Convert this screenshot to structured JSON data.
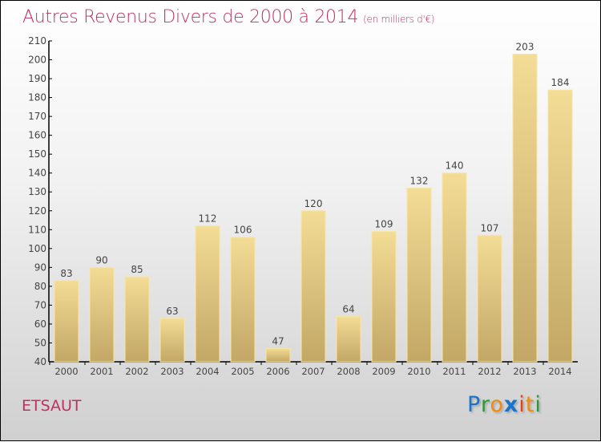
{
  "title": "Autres Revenus Divers de 2000 à 2014",
  "subtitle": "(en milliers d'€)",
  "place": "ETSAUT",
  "logo_text": "Proxiti",
  "colors": {
    "title": "#c0305e",
    "bar_top": "#f3dc96",
    "bar_bottom": "#c2a765",
    "bar_border": "#f7e6a2"
  },
  "chart_data": {
    "type": "bar",
    "title": "Autres Revenus Divers de 2000 à 2014",
    "ylabel": "en milliers d'€",
    "xlabel": "",
    "ylim": [
      40,
      210
    ],
    "ytick_step": 10,
    "grid": false,
    "categories": [
      "2000",
      "2001",
      "2002",
      "2003",
      "2004",
      "2005",
      "2006",
      "2007",
      "2008",
      "2009",
      "2010",
      "2011",
      "2012",
      "2013",
      "2014"
    ],
    "values": [
      83,
      90,
      85,
      63,
      112,
      106,
      47,
      120,
      64,
      109,
      132,
      140,
      107,
      203,
      184
    ]
  }
}
